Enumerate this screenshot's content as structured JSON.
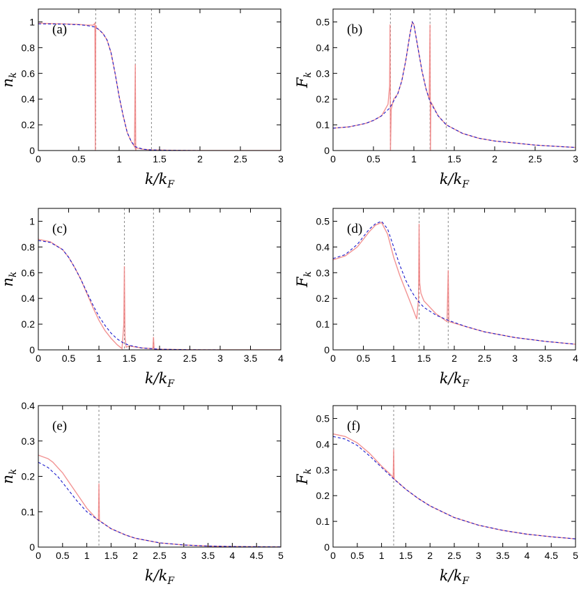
{
  "colors": {
    "data": "#f08080",
    "fit": "#1a1acc",
    "guide": "#888888"
  },
  "chart_data": [
    {
      "type": "line",
      "label": "(a)",
      "xlabel": "k/k",
      "xlabel_sub": "F",
      "ylabel": "n",
      "ylabel_sub": "k",
      "xlim": [
        0,
        3
      ],
      "ylim": [
        0,
        1.1
      ],
      "xticks": [
        "0",
        "0.5",
        "1",
        "1.5",
        "2",
        "2.5",
        "3"
      ],
      "xtick_values": [
        0,
        0.5,
        1,
        1.5,
        2,
        2.5,
        3
      ],
      "yticks": [
        "0",
        "0.2",
        "0.4",
        "0.6",
        "0.8",
        "1"
      ],
      "ytick_values": [
        0,
        0.2,
        0.4,
        0.6,
        0.8,
        1
      ],
      "vlines": [
        0.71,
        1.2,
        1.4
      ],
      "fit": {
        "x": [
          0,
          0.3,
          0.5,
          0.6,
          0.7,
          0.75,
          0.8,
          0.85,
          0.9,
          0.95,
          1.0,
          1.05,
          1.1,
          1.15,
          1.2,
          1.3,
          1.4,
          1.6,
          2.0,
          3.0
        ],
        "y": [
          0.985,
          0.983,
          0.978,
          0.972,
          0.96,
          0.94,
          0.91,
          0.86,
          0.76,
          0.6,
          0.42,
          0.27,
          0.14,
          0.07,
          0.03,
          0.01,
          0.005,
          0.002,
          0.0,
          0.0
        ]
      },
      "data": {
        "x": [
          0,
          0.3,
          0.5,
          0.6,
          0.68,
          0.7,
          0.705,
          0.71,
          0.715,
          0.72,
          0.75,
          0.8,
          0.85,
          0.9,
          0.95,
          1.0,
          1.05,
          1.1,
          1.15,
          1.19,
          1.2,
          1.205,
          1.21,
          1.3,
          1.4,
          1.6,
          2.0,
          3.0
        ],
        "y": [
          0.99,
          0.985,
          0.98,
          0.975,
          0.975,
          0.99,
          0.0,
          0.97,
          0.97,
          0.955,
          0.94,
          0.91,
          0.86,
          0.76,
          0.6,
          0.42,
          0.27,
          0.14,
          0.07,
          0.03,
          0.67,
          0.0,
          0.02,
          0.01,
          0.005,
          0.002,
          0.0,
          0.0
        ]
      }
    },
    {
      "type": "line",
      "label": "(b)",
      "xlabel": "k/k",
      "xlabel_sub": "F",
      "ylabel": "F",
      "ylabel_sub": "k",
      "xlim": [
        0,
        3
      ],
      "ylim": [
        0,
        0.55
      ],
      "xticks": [
        "0",
        "0.5",
        "1",
        "1.5",
        "2",
        "2.5",
        "3"
      ],
      "xtick_values": [
        0,
        0.5,
        1,
        1.5,
        2,
        2.5,
        3
      ],
      "yticks": [
        "0",
        "0.1",
        "0.2",
        "0.3",
        "0.4",
        "0.5"
      ],
      "ytick_values": [
        0,
        0.1,
        0.2,
        0.3,
        0.4,
        0.5
      ],
      "vlines": [
        0.71,
        1.2,
        1.4
      ],
      "fit": {
        "x": [
          0,
          0.2,
          0.4,
          0.5,
          0.6,
          0.7,
          0.8,
          0.85,
          0.9,
          0.95,
          0.98,
          1.0,
          1.05,
          1.1,
          1.15,
          1.2,
          1.3,
          1.4,
          1.6,
          1.8,
          2.0,
          2.5,
          3.0
        ],
        "y": [
          0.087,
          0.092,
          0.105,
          0.117,
          0.135,
          0.165,
          0.22,
          0.27,
          0.35,
          0.45,
          0.5,
          0.49,
          0.4,
          0.31,
          0.24,
          0.19,
          0.135,
          0.1,
          0.067,
          0.048,
          0.037,
          0.021,
          0.012
        ]
      },
      "data": {
        "x": [
          0,
          0.2,
          0.4,
          0.5,
          0.6,
          0.68,
          0.7,
          0.705,
          0.71,
          0.72,
          0.75,
          0.8,
          0.85,
          0.9,
          0.95,
          0.98,
          1.0,
          1.05,
          1.1,
          1.15,
          1.19,
          1.2,
          1.205,
          1.21,
          1.3,
          1.4,
          1.6,
          1.8,
          2.0,
          2.5,
          3.0
        ],
        "y": [
          0.087,
          0.092,
          0.105,
          0.117,
          0.135,
          0.18,
          0.25,
          0.49,
          0.0,
          0.16,
          0.2,
          0.22,
          0.27,
          0.35,
          0.45,
          0.5,
          0.49,
          0.4,
          0.31,
          0.24,
          0.2,
          0.49,
          0.0,
          0.19,
          0.135,
          0.1,
          0.067,
          0.048,
          0.037,
          0.021,
          0.012
        ]
      }
    },
    {
      "type": "line",
      "label": "(c)",
      "xlabel": "k/k",
      "xlabel_sub": "F",
      "ylabel": "n",
      "ylabel_sub": "k",
      "xlim": [
        0,
        4
      ],
      "ylim": [
        0,
        1.1
      ],
      "xticks": [
        "0",
        "0.5",
        "1",
        "1.5",
        "2",
        "2.5",
        "3",
        "3.5",
        "4"
      ],
      "xtick_values": [
        0,
        0.5,
        1,
        1.5,
        2,
        2.5,
        3,
        3.5,
        4
      ],
      "yticks": [
        "0",
        "0.2",
        "0.4",
        "0.6",
        "0.8",
        "1"
      ],
      "ytick_values": [
        0,
        0.2,
        0.4,
        0.6,
        0.8,
        1
      ],
      "vlines": [
        1.42,
        1.9
      ],
      "fit": {
        "x": [
          0,
          0.2,
          0.4,
          0.5,
          0.6,
          0.7,
          0.8,
          0.9,
          1.0,
          1.1,
          1.2,
          1.3,
          1.4,
          1.5,
          1.7,
          2.0,
          2.5,
          3.0,
          4.0
        ],
        "y": [
          0.85,
          0.835,
          0.78,
          0.72,
          0.64,
          0.55,
          0.45,
          0.35,
          0.26,
          0.19,
          0.13,
          0.085,
          0.055,
          0.035,
          0.015,
          0.005,
          0.001,
          0.0,
          0.0
        ]
      },
      "data": {
        "x": [
          0,
          0.2,
          0.4,
          0.5,
          0.6,
          0.7,
          0.8,
          0.9,
          1.0,
          1.1,
          1.2,
          1.3,
          1.38,
          1.41,
          1.42,
          1.43,
          1.45,
          1.5,
          1.7,
          1.89,
          1.9,
          1.91,
          2.0,
          2.5,
          3.0,
          4.0
        ],
        "y": [
          0.86,
          0.84,
          0.78,
          0.72,
          0.64,
          0.55,
          0.44,
          0.33,
          0.23,
          0.15,
          0.09,
          0.04,
          0.01,
          0.2,
          0.65,
          0.1,
          0.02,
          0.03,
          0.015,
          0.01,
          0.1,
          0.005,
          0.005,
          0.001,
          0.0,
          0.0
        ]
      }
    },
    {
      "type": "line",
      "label": "(d)",
      "xlabel": "k/k",
      "xlabel_sub": "F",
      "ylabel": "F",
      "ylabel_sub": "k",
      "xlim": [
        0,
        4
      ],
      "ylim": [
        0,
        0.55
      ],
      "xticks": [
        "0",
        "0.5",
        "1",
        "1.5",
        "2",
        "2.5",
        "3",
        "3.5",
        "4"
      ],
      "xtick_values": [
        0,
        0.5,
        1,
        1.5,
        2,
        2.5,
        3,
        3.5,
        4
      ],
      "yticks": [
        "0",
        "0.1",
        "0.2",
        "0.3",
        "0.4",
        "0.5"
      ],
      "ytick_values": [
        0,
        0.1,
        0.2,
        0.3,
        0.4,
        0.5
      ],
      "vlines": [
        1.42,
        1.9
      ],
      "fit": {
        "x": [
          0,
          0.2,
          0.4,
          0.6,
          0.7,
          0.8,
          0.9,
          1.0,
          1.1,
          1.2,
          1.3,
          1.4,
          1.5,
          1.7,
          1.9,
          2.2,
          2.5,
          3.0,
          3.5,
          4.0
        ],
        "y": [
          0.355,
          0.37,
          0.41,
          0.47,
          0.49,
          0.5,
          0.47,
          0.4,
          0.33,
          0.27,
          0.225,
          0.19,
          0.165,
          0.135,
          0.115,
          0.09,
          0.07,
          0.048,
          0.033,
          0.022
        ]
      },
      "data": {
        "x": [
          0,
          0.2,
          0.4,
          0.6,
          0.7,
          0.8,
          0.9,
          1.0,
          1.1,
          1.2,
          1.3,
          1.38,
          1.41,
          1.42,
          1.43,
          1.45,
          1.5,
          1.7,
          1.88,
          1.9,
          1.91,
          2.2,
          2.5,
          3.0,
          3.5,
          4.0
        ],
        "y": [
          0.35,
          0.365,
          0.4,
          0.46,
          0.485,
          0.495,
          0.45,
          0.36,
          0.29,
          0.23,
          0.17,
          0.12,
          0.2,
          0.49,
          0.26,
          0.22,
          0.19,
          0.14,
          0.11,
          0.31,
          0.11,
          0.09,
          0.07,
          0.048,
          0.033,
          0.022
        ]
      }
    },
    {
      "type": "line",
      "label": "(e)",
      "xlabel": "k/k",
      "xlabel_sub": "F",
      "ylabel": "n",
      "ylabel_sub": "k",
      "xlim": [
        0,
        5
      ],
      "ylim": [
        0,
        0.4
      ],
      "xticks": [
        "0",
        "0.5",
        "1",
        "1.5",
        "2",
        "2.5",
        "3",
        "3.5",
        "4",
        "4.5",
        "5"
      ],
      "xtick_values": [
        0,
        0.5,
        1,
        1.5,
        2,
        2.5,
        3,
        3.5,
        4,
        4.5,
        5
      ],
      "yticks": [
        "0",
        "0.1",
        "0.2",
        "0.3",
        "0.4"
      ],
      "ytick_values": [
        0,
        0.1,
        0.2,
        0.3,
        0.4
      ],
      "vlines": [
        1.25
      ],
      "fit": {
        "x": [
          0,
          0.2,
          0.4,
          0.6,
          0.8,
          1.0,
          1.25,
          1.5,
          1.8,
          2.0,
          2.5,
          3.0,
          3.5,
          4.0,
          5.0
        ],
        "y": [
          0.24,
          0.225,
          0.2,
          0.165,
          0.13,
          0.1,
          0.075,
          0.052,
          0.034,
          0.025,
          0.012,
          0.006,
          0.003,
          0.0015,
          0.0005
        ]
      },
      "data": {
        "x": [
          0,
          0.1,
          0.2,
          0.3,
          0.4,
          0.5,
          0.6,
          0.8,
          1.0,
          1.2,
          1.24,
          1.25,
          1.26,
          1.5,
          1.8,
          2.0,
          2.5,
          3.0,
          3.5,
          4.0,
          5.0
        ],
        "y": [
          0.26,
          0.255,
          0.25,
          0.24,
          0.225,
          0.21,
          0.19,
          0.15,
          0.11,
          0.08,
          0.075,
          0.18,
          0.075,
          0.052,
          0.034,
          0.025,
          0.012,
          0.006,
          0.003,
          0.0015,
          0.0005
        ]
      }
    },
    {
      "type": "line",
      "label": "(f)",
      "xlabel": "k/k",
      "xlabel_sub": "F",
      "ylabel": "F",
      "ylabel_sub": "k",
      "xlim": [
        0,
        5
      ],
      "ylim": [
        0,
        0.55
      ],
      "xticks": [
        "0",
        "0.5",
        "1",
        "1.5",
        "2",
        "2.5",
        "3",
        "3.5",
        "4",
        "4.5",
        "5"
      ],
      "xtick_values": [
        0,
        0.5,
        1,
        1.5,
        2,
        2.5,
        3,
        3.5,
        4,
        4.5,
        5
      ],
      "yticks": [
        "0",
        "0.1",
        "0.2",
        "0.3",
        "0.4",
        "0.5"
      ],
      "ytick_values": [
        0,
        0.1,
        0.2,
        0.3,
        0.4,
        0.5
      ],
      "vlines": [
        1.25
      ],
      "fit": {
        "x": [
          0,
          0.25,
          0.5,
          0.75,
          1.0,
          1.25,
          1.5,
          1.75,
          2.0,
          2.5,
          3.0,
          3.5,
          4.0,
          4.5,
          5.0
        ],
        "y": [
          0.43,
          0.42,
          0.395,
          0.355,
          0.31,
          0.265,
          0.225,
          0.19,
          0.16,
          0.115,
          0.085,
          0.065,
          0.05,
          0.04,
          0.032
        ]
      },
      "data": {
        "x": [
          0,
          0.25,
          0.5,
          0.75,
          1.0,
          1.2,
          1.24,
          1.25,
          1.26,
          1.5,
          1.75,
          2.0,
          2.5,
          3.0,
          3.5,
          4.0,
          4.5,
          5.0
        ],
        "y": [
          0.44,
          0.43,
          0.405,
          0.365,
          0.315,
          0.28,
          0.27,
          0.38,
          0.265,
          0.225,
          0.19,
          0.16,
          0.115,
          0.085,
          0.065,
          0.05,
          0.04,
          0.032
        ]
      }
    }
  ]
}
